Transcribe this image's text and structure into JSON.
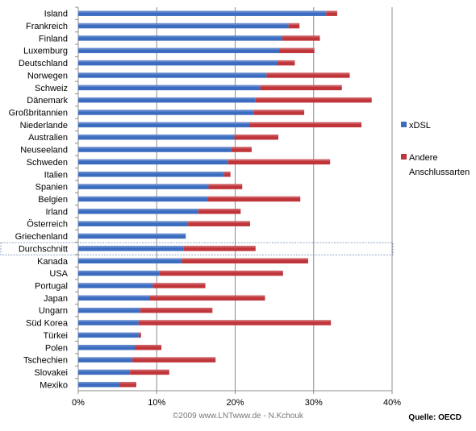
{
  "chart_data": {
    "type": "bar",
    "orientation": "horizontal",
    "stacked": true,
    "categories": [
      "Island",
      "Frankreich",
      "Finland",
      "Luxemburg",
      "Deutschland",
      "Norwegen",
      "Schweiz",
      "Dänemark",
      "Großbritannien",
      "Niederlande",
      "Australien",
      "Neuseeland",
      "Schweden",
      "Italien",
      "Spanien",
      "Belgien",
      "Irland",
      "Österreich",
      "Griechenland",
      "Durchschnitt",
      "Kanada",
      "USA",
      "Portugal",
      "Japan",
      "Ungarn",
      "Süd Korea",
      "Türkei",
      "Polen",
      "Tschechien",
      "Slovakei",
      "Mexiko"
    ],
    "highlight_category": "Durchschnitt",
    "series": [
      {
        "name": "xDSL",
        "color": "#3c6cc0",
        "values": [
          31.6,
          26.8,
          26.0,
          25.6,
          25.4,
          24.0,
          23.2,
          22.6,
          22.4,
          21.8,
          19.9,
          19.5,
          19.1,
          18.6,
          16.6,
          16.5,
          15.3,
          14.0,
          13.7,
          13.4,
          13.2,
          10.3,
          9.5,
          9.1,
          7.9,
          7.7,
          7.7,
          7.2,
          6.9,
          6.6,
          5.3
        ]
      },
      {
        "name": "Andere Anschlussarten",
        "color": "#c0353a",
        "values": [
          1.4,
          1.4,
          4.8,
          4.5,
          2.2,
          10.6,
          10.4,
          14.8,
          6.4,
          14.3,
          5.6,
          2.6,
          13.0,
          0.8,
          4.3,
          11.8,
          5.4,
          7.9,
          0.0,
          9.2,
          16.1,
          15.8,
          6.7,
          14.7,
          9.2,
          24.5,
          0.3,
          3.4,
          10.6,
          5.0,
          2.1
        ]
      }
    ],
    "xlim": [
      0,
      40
    ],
    "xticks": [
      "0%",
      "10%",
      "20%",
      "30%",
      "40%"
    ],
    "xtick_values": [
      0,
      10,
      20,
      30,
      40
    ],
    "grid": true,
    "legend_position": "right"
  },
  "footer": {
    "credit": "©2009 www.LNTwww.de - N.Kchouk",
    "source": "Quelle: OECD"
  }
}
